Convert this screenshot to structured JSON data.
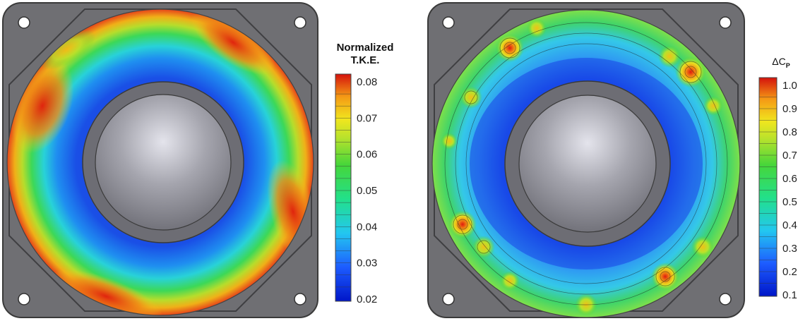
{
  "panels": [
    {
      "id": "tke",
      "colorbar": {
        "title_lines": [
          "Normalized",
          "T.K.E."
        ],
        "ticks": [
          "0.08",
          "0.07",
          "0.06",
          "0.05",
          "0.04",
          "0.03",
          "0.02"
        ],
        "min": 0.02,
        "max": 0.08
      }
    },
    {
      "id": "dcp",
      "colorbar": {
        "title_symbol": "ΔC",
        "title_subscript": "P",
        "ticks": [
          "1.0",
          "0.9",
          "0.8",
          "0.7",
          "0.6",
          "0.5",
          "0.4",
          "0.3",
          "0.2",
          "0.1"
        ],
        "min": 0.1,
        "max": 1.0
      }
    }
  ],
  "colors": {
    "plate": "#6f6f73",
    "plate_edge": "#3a3a3a",
    "hub": "#8e8e94",
    "low": "#0a2fd6",
    "mid": "#2fd13a",
    "high": "#e0150c"
  }
}
